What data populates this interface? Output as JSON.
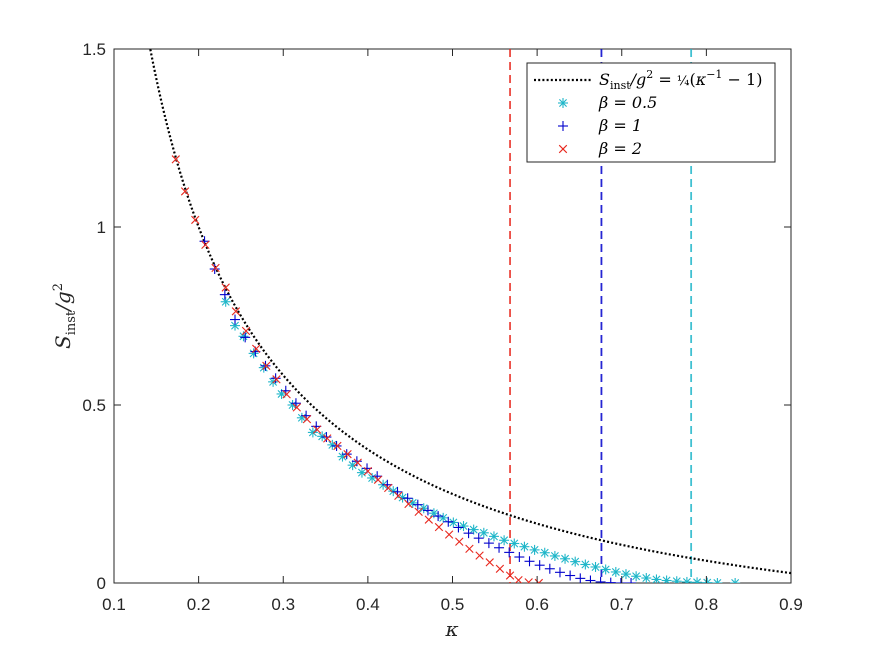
{
  "chart_data": {
    "type": "scatter",
    "xlabel": "κ",
    "ylabel": "S_inst / g²",
    "xlim": [
      0.1,
      0.9
    ],
    "ylim": [
      0,
      1.5
    ],
    "xticks": [
      "0.1",
      "0.2",
      "0.3",
      "0.4",
      "0.5",
      "0.6",
      "0.7",
      "0.8",
      "0.9"
    ],
    "yticks": [
      "0",
      "0.5",
      "1",
      "1.5"
    ],
    "grid": false,
    "legend_position": "top-right",
    "theory_curve": {
      "name": "S_inst/g² = ¼(κ⁻¹ − 1)",
      "style": "dotted",
      "color": "#000000",
      "formula": "0.25*(1/k - 1)",
      "x_range": [
        0.1,
        0.9
      ]
    },
    "series": [
      {
        "name": "β = 0.5",
        "marker": "asterisk",
        "color": "#1fb6c9",
        "critical_kappa": 0.782,
        "x": [
          0.232,
          0.243,
          0.253,
          0.265,
          0.277,
          0.288,
          0.298,
          0.311,
          0.322,
          0.335,
          0.346,
          0.358,
          0.37,
          0.382,
          0.393,
          0.405,
          0.418,
          0.43,
          0.441,
          0.453,
          0.466,
          0.478,
          0.489,
          0.501,
          0.513,
          0.525,
          0.537,
          0.549,
          0.561,
          0.573,
          0.585,
          0.597,
          0.609,
          0.621,
          0.633,
          0.645,
          0.657,
          0.669,
          0.681,
          0.693,
          0.705,
          0.717,
          0.729,
          0.741,
          0.753,
          0.765,
          0.777,
          0.789,
          0.801,
          0.813,
          0.834
        ],
        "y": [
          0.79,
          0.723,
          0.693,
          0.645,
          0.605,
          0.565,
          0.531,
          0.5,
          0.464,
          0.423,
          0.412,
          0.388,
          0.355,
          0.331,
          0.31,
          0.295,
          0.276,
          0.258,
          0.24,
          0.225,
          0.21,
          0.196,
          0.183,
          0.17,
          0.16,
          0.15,
          0.141,
          0.131,
          0.12,
          0.111,
          0.102,
          0.093,
          0.085,
          0.076,
          0.068,
          0.06,
          0.052,
          0.045,
          0.038,
          0.031,
          0.025,
          0.019,
          0.014,
          0.01,
          0.007,
          0.005,
          0.003,
          0.002,
          0.001,
          0.0,
          0.0
        ]
      },
      {
        "name": "β = 1",
        "marker": "plus",
        "color": "#0000cc",
        "critical_kappa": 0.676,
        "x": [
          0.207,
          0.219,
          0.231,
          0.243,
          0.255,
          0.267,
          0.279,
          0.291,
          0.303,
          0.315,
          0.327,
          0.339,
          0.351,
          0.363,
          0.375,
          0.387,
          0.399,
          0.411,
          0.423,
          0.435,
          0.447,
          0.459,
          0.471,
          0.483,
          0.495,
          0.507,
          0.519,
          0.531,
          0.543,
          0.555,
          0.567,
          0.579,
          0.591,
          0.603,
          0.615,
          0.627,
          0.639,
          0.651,
          0.663,
          0.675,
          0.687,
          0.699,
          0.711
        ],
        "y": [
          0.96,
          0.882,
          0.81,
          0.74,
          0.69,
          0.65,
          0.61,
          0.575,
          0.54,
          0.505,
          0.47,
          0.44,
          0.41,
          0.385,
          0.362,
          0.342,
          0.322,
          0.3,
          0.276,
          0.256,
          0.238,
          0.22,
          0.204,
          0.188,
          0.172,
          0.156,
          0.14,
          0.126,
          0.112,
          0.099,
          0.086,
          0.073,
          0.061,
          0.05,
          0.04,
          0.03,
          0.021,
          0.013,
          0.007,
          0.003,
          0.001,
          0.0,
          0.0
        ]
      },
      {
        "name": "β = 2",
        "marker": "x",
        "color": "#e8281e",
        "critical_kappa": 0.568,
        "x": [
          0.173,
          0.184,
          0.196,
          0.208,
          0.22,
          0.232,
          0.244,
          0.256,
          0.268,
          0.28,
          0.292,
          0.304,
          0.316,
          0.328,
          0.34,
          0.352,
          0.364,
          0.376,
          0.388,
          0.4,
          0.412,
          0.424,
          0.436,
          0.448,
          0.46,
          0.472,
          0.484,
          0.496,
          0.508,
          0.52,
          0.532,
          0.544,
          0.556,
          0.568,
          0.578,
          0.59,
          0.602
        ],
        "y": [
          1.19,
          1.1,
          1.02,
          0.95,
          0.885,
          0.83,
          0.763,
          0.708,
          0.658,
          0.61,
          0.572,
          0.53,
          0.493,
          0.46,
          0.431,
          0.406,
          0.385,
          0.362,
          0.338,
          0.314,
          0.29,
          0.267,
          0.245,
          0.222,
          0.2,
          0.178,
          0.157,
          0.136,
          0.116,
          0.096,
          0.077,
          0.058,
          0.04,
          0.021,
          0.008,
          0.002,
          0.0
        ]
      }
    ]
  }
}
